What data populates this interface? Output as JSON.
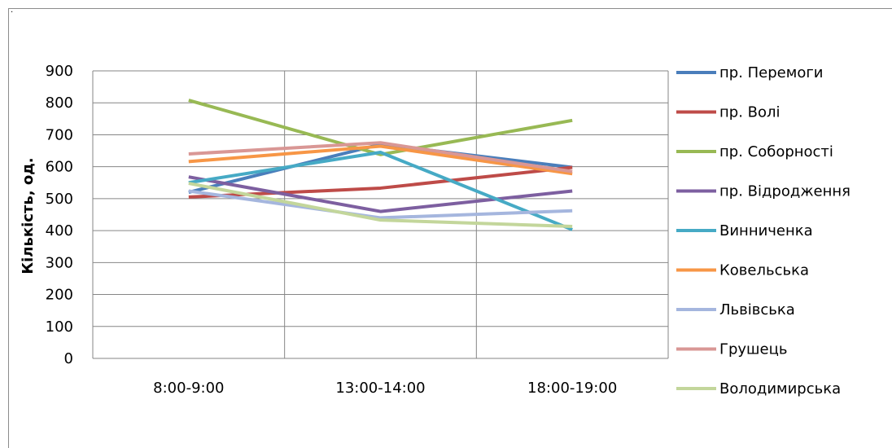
{
  "corner_mark": ".",
  "chart_data": {
    "type": "line",
    "title": "",
    "xlabel": "",
    "ylabel": "Кількість, од.",
    "ylim": [
      0,
      900
    ],
    "y_ticks": [
      0,
      100,
      200,
      300,
      400,
      500,
      600,
      700,
      800,
      900
    ],
    "grid": true,
    "legend_position": "right",
    "categories": [
      "8:00-9:00",
      "13:00-14:00",
      "18:00-19:00"
    ],
    "series": [
      {
        "name": "пр. Перемоги",
        "color": "#4a7ebb",
        "values": [
          520,
          670,
          598
        ]
      },
      {
        "name": "пр. Волі",
        "color": "#be4b48",
        "values": [
          505,
          533,
          598
        ]
      },
      {
        "name": "пр. Соборності",
        "color": "#98b954",
        "values": [
          808,
          638,
          745
        ]
      },
      {
        "name": "пр. Відродження",
        "color": "#7d5fa0",
        "values": [
          568,
          460,
          524
        ]
      },
      {
        "name": "Винниченка",
        "color": "#46aac5",
        "values": [
          550,
          645,
          403
        ]
      },
      {
        "name": "Ковельська",
        "color": "#f79646",
        "values": [
          616,
          664,
          578
        ]
      },
      {
        "name": "Львівська",
        "color": "#a5b6de",
        "values": [
          524,
          440,
          462
        ]
      },
      {
        "name": "Грушець",
        "color": "#d99795",
        "values": [
          640,
          675,
          585
        ]
      },
      {
        "name": "Володимирська",
        "color": "#c3d69b",
        "values": [
          548,
          433,
          413
        ]
      }
    ]
  }
}
